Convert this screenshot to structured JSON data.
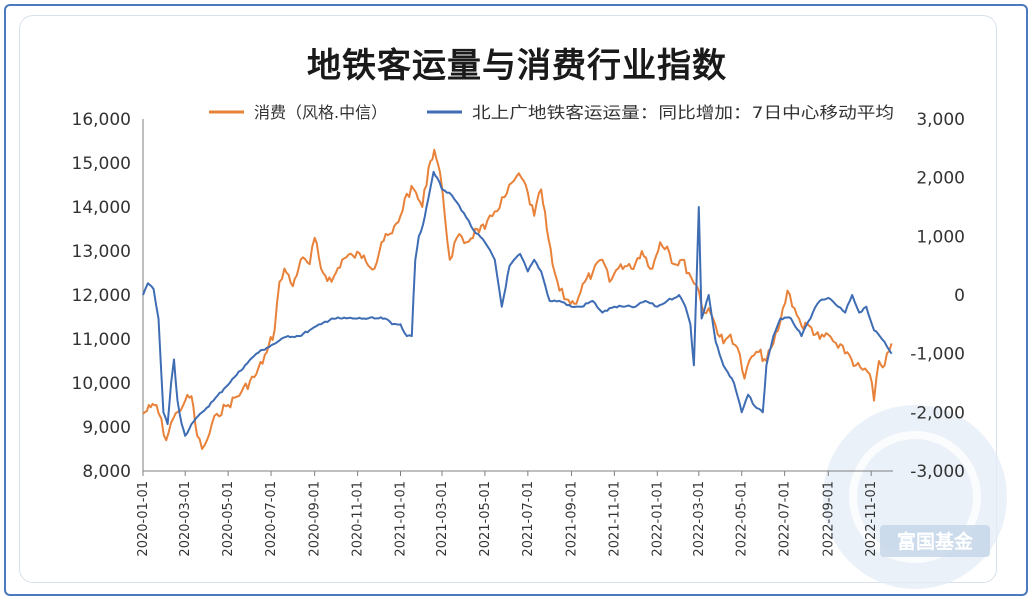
{
  "chart_data": {
    "type": "line",
    "title": "地铁客运量与消费行业指数",
    "watermark": "富国基金",
    "left_axis": {
      "ylim": [
        8000,
        16000
      ],
      "ticks": [
        "8,000",
        "9,000",
        "10,000",
        "11,000",
        "12,000",
        "13,000",
        "14,000",
        "15,000",
        "16,000"
      ]
    },
    "right_axis": {
      "ylim": [
        -3000,
        3000
      ],
      "ticks": [
        "-3,000",
        "-2,000",
        "-1,000",
        "0",
        "1,000",
        "2,000",
        "3,000"
      ]
    },
    "x_ticks": [
      "2020-01-01",
      "2020-03-01",
      "2020-05-01",
      "2020-07-01",
      "2020-09-01",
      "2020-11-01",
      "2021-01-01",
      "2021-03-01",
      "2021-05-01",
      "2021-07-01",
      "2021-09-01",
      "2021-11-01",
      "2022-01-01",
      "2022-03-01",
      "2022-05-01",
      "2022-07-01",
      "2022-09-01",
      "2022-11-01"
    ],
    "series": [
      {
        "name": "消费（风格.中信）",
        "axis": "left",
        "color": "#e8823a",
        "points": [
          [
            "2020-01-01",
            9300
          ],
          [
            "2020-01-12",
            9450
          ],
          [
            "2020-01-20",
            9500
          ],
          [
            "2020-02-03",
            8700
          ],
          [
            "2020-02-10",
            9100
          ],
          [
            "2020-02-20",
            9350
          ],
          [
            "2020-03-01",
            9600
          ],
          [
            "2020-03-10",
            9700
          ],
          [
            "2020-03-18",
            8800
          ],
          [
            "2020-03-25",
            8500
          ],
          [
            "2020-04-01",
            8700
          ],
          [
            "2020-04-15",
            9300
          ],
          [
            "2020-05-01",
            9500
          ],
          [
            "2020-05-20",
            9800
          ],
          [
            "2020-06-10",
            10200
          ],
          [
            "2020-06-25",
            10700
          ],
          [
            "2020-07-06",
            11200
          ],
          [
            "2020-07-13",
            12300
          ],
          [
            "2020-07-20",
            12600
          ],
          [
            "2020-08-01",
            12200
          ],
          [
            "2020-08-12",
            12800
          ],
          [
            "2020-08-25",
            12700
          ],
          [
            "2020-09-01",
            13300
          ],
          [
            "2020-09-10",
            12600
          ],
          [
            "2020-09-25",
            12300
          ],
          [
            "2020-10-10",
            12800
          ],
          [
            "2020-10-25",
            12900
          ],
          [
            "2020-11-10",
            12900
          ],
          [
            "2020-11-25",
            12600
          ],
          [
            "2020-12-05",
            13200
          ],
          [
            "2020-12-20",
            13400
          ],
          [
            "2021-01-01",
            13800
          ],
          [
            "2021-01-10",
            14300
          ],
          [
            "2021-01-20",
            14400
          ],
          [
            "2021-02-01",
            14000
          ],
          [
            "2021-02-10",
            14900
          ],
          [
            "2021-02-18",
            15300
          ],
          [
            "2021-02-26",
            14800
          ],
          [
            "2021-03-05",
            13800
          ],
          [
            "2021-03-12",
            12800
          ],
          [
            "2021-03-22",
            13300
          ],
          [
            "2021-04-05",
            13200
          ],
          [
            "2021-04-20",
            13500
          ],
          [
            "2021-05-01",
            13500
          ],
          [
            "2021-05-15",
            13900
          ],
          [
            "2021-06-01",
            14300
          ],
          [
            "2021-06-15",
            14700
          ],
          [
            "2021-06-25",
            14600
          ],
          [
            "2021-07-10",
            13800
          ],
          [
            "2021-07-20",
            14400
          ],
          [
            "2021-07-28",
            13500
          ],
          [
            "2021-08-05",
            12700
          ],
          [
            "2021-08-15",
            12100
          ],
          [
            "2021-08-25",
            11900
          ],
          [
            "2021-09-05",
            11800
          ],
          [
            "2021-09-20",
            12300
          ],
          [
            "2021-10-01",
            12500
          ],
          [
            "2021-10-15",
            12800
          ],
          [
            "2021-10-25",
            12300
          ],
          [
            "2021-11-10",
            12700
          ],
          [
            "2021-11-25",
            12600
          ],
          [
            "2021-12-10",
            13000
          ],
          [
            "2021-12-25",
            12600
          ],
          [
            "2022-01-05",
            13200
          ],
          [
            "2022-01-15",
            13100
          ],
          [
            "2022-01-25",
            12700
          ],
          [
            "2022-02-05",
            12800
          ],
          [
            "2022-02-15",
            12500
          ],
          [
            "2022-03-01",
            12100
          ],
          [
            "2022-03-08",
            11600
          ],
          [
            "2022-03-15",
            11700
          ],
          [
            "2022-03-25",
            11300
          ],
          [
            "2022-04-05",
            10900
          ],
          [
            "2022-04-15",
            11100
          ],
          [
            "2022-04-25",
            10800
          ],
          [
            "2022-05-05",
            10100
          ],
          [
            "2022-05-15",
            10600
          ],
          [
            "2022-05-25",
            10700
          ],
          [
            "2022-06-05",
            10500
          ],
          [
            "2022-06-15",
            10900
          ],
          [
            "2022-06-25",
            11400
          ],
          [
            "2022-07-05",
            12100
          ],
          [
            "2022-07-15",
            11700
          ],
          [
            "2022-07-25",
            11300
          ],
          [
            "2022-08-05",
            11300
          ],
          [
            "2022-08-20",
            11000
          ],
          [
            "2022-09-01",
            11100
          ],
          [
            "2022-09-15",
            10800
          ],
          [
            "2022-09-28",
            10700
          ],
          [
            "2022-10-10",
            10400
          ],
          [
            "2022-10-20",
            10300
          ],
          [
            "2022-10-30",
            10200
          ],
          [
            "2022-11-05",
            9600
          ],
          [
            "2022-11-12",
            10500
          ],
          [
            "2022-11-20",
            10400
          ],
          [
            "2022-11-30",
            10900
          ]
        ]
      },
      {
        "name": "北上广地铁客运运量：同比增加：7日中心移动平均",
        "axis": "right",
        "color": "#3f6db4",
        "points": [
          [
            "2020-01-01",
            0
          ],
          [
            "2020-01-08",
            200
          ],
          [
            "2020-01-16",
            100
          ],
          [
            "2020-01-23",
            -400
          ],
          [
            "2020-01-30",
            -2000
          ],
          [
            "2020-02-05",
            -2200
          ],
          [
            "2020-02-10",
            -1500
          ],
          [
            "2020-02-14",
            -1100
          ],
          [
            "2020-02-19",
            -1800
          ],
          [
            "2020-02-25",
            -2200
          ],
          [
            "2020-03-01",
            -2400
          ],
          [
            "2020-03-10",
            -2200
          ],
          [
            "2020-03-25",
            -2000
          ],
          [
            "2020-04-10",
            -1800
          ],
          [
            "2020-04-25",
            -1600
          ],
          [
            "2020-05-10",
            -1400
          ],
          [
            "2020-05-25",
            -1200
          ],
          [
            "2020-06-10",
            -1000
          ],
          [
            "2020-06-25",
            -900
          ],
          [
            "2020-07-10",
            -800
          ],
          [
            "2020-07-25",
            -700
          ],
          [
            "2020-08-10",
            -700
          ],
          [
            "2020-08-25",
            -600
          ],
          [
            "2020-09-10",
            -500
          ],
          [
            "2020-09-25",
            -400
          ],
          [
            "2020-10-10",
            -400
          ],
          [
            "2020-10-25",
            -400
          ],
          [
            "2020-11-10",
            -400
          ],
          [
            "2020-11-25",
            -400
          ],
          [
            "2020-12-10",
            -400
          ],
          [
            "2020-12-20",
            -500
          ],
          [
            "2021-01-01",
            -500
          ],
          [
            "2021-01-10",
            -700
          ],
          [
            "2021-01-17",
            -700
          ],
          [
            "2021-01-22",
            600
          ],
          [
            "2021-01-27",
            1000
          ],
          [
            "2021-02-02",
            1200
          ],
          [
            "2021-02-07",
            1500
          ],
          [
            "2021-02-12",
            1800
          ],
          [
            "2021-02-17",
            2100
          ],
          [
            "2021-02-22",
            2000
          ],
          [
            "2021-03-01",
            1800
          ],
          [
            "2021-03-15",
            1700
          ],
          [
            "2021-04-01",
            1400
          ],
          [
            "2021-04-15",
            1100
          ],
          [
            "2021-05-01",
            900
          ],
          [
            "2021-05-15",
            600
          ],
          [
            "2021-05-25",
            -200
          ],
          [
            "2021-06-05",
            500
          ],
          [
            "2021-06-20",
            700
          ],
          [
            "2021-07-01",
            400
          ],
          [
            "2021-07-10",
            600
          ],
          [
            "2021-07-20",
            400
          ],
          [
            "2021-08-01",
            -100
          ],
          [
            "2021-08-15",
            -100
          ],
          [
            "2021-09-01",
            -200
          ],
          [
            "2021-09-15",
            -200
          ],
          [
            "2021-10-01",
            -100
          ],
          [
            "2021-10-15",
            -300
          ],
          [
            "2021-11-01",
            -200
          ],
          [
            "2021-11-15",
            -200
          ],
          [
            "2021-12-01",
            -200
          ],
          [
            "2021-12-15",
            -100
          ],
          [
            "2022-01-01",
            -200
          ],
          [
            "2022-01-15",
            -100
          ],
          [
            "2022-02-01",
            0
          ],
          [
            "2022-02-10",
            -200
          ],
          [
            "2022-02-17",
            -500
          ],
          [
            "2022-02-22",
            -1200
          ],
          [
            "2022-03-01",
            1500
          ],
          [
            "2022-03-05",
            -400
          ],
          [
            "2022-03-15",
            0
          ],
          [
            "2022-03-25",
            -800
          ],
          [
            "2022-04-05",
            -1200
          ],
          [
            "2022-04-20",
            -1500
          ],
          [
            "2022-05-01",
            -2000
          ],
          [
            "2022-05-10",
            -1700
          ],
          [
            "2022-05-20",
            -1900
          ],
          [
            "2022-05-31",
            -2000
          ],
          [
            "2022-06-05",
            -1200
          ],
          [
            "2022-06-15",
            -700
          ],
          [
            "2022-06-25",
            -400
          ],
          [
            "2022-07-10",
            -400
          ],
          [
            "2022-07-25",
            -700
          ],
          [
            "2022-08-10",
            -300
          ],
          [
            "2022-08-20",
            -100
          ],
          [
            "2022-09-01",
            -50
          ],
          [
            "2022-09-15",
            -200
          ],
          [
            "2022-09-25",
            -300
          ],
          [
            "2022-10-05",
            0
          ],
          [
            "2022-10-15",
            -300
          ],
          [
            "2022-10-25",
            -200
          ],
          [
            "2022-11-05",
            -600
          ],
          [
            "2022-11-20",
            -800
          ],
          [
            "2022-11-30",
            -1000
          ]
        ]
      }
    ]
  }
}
